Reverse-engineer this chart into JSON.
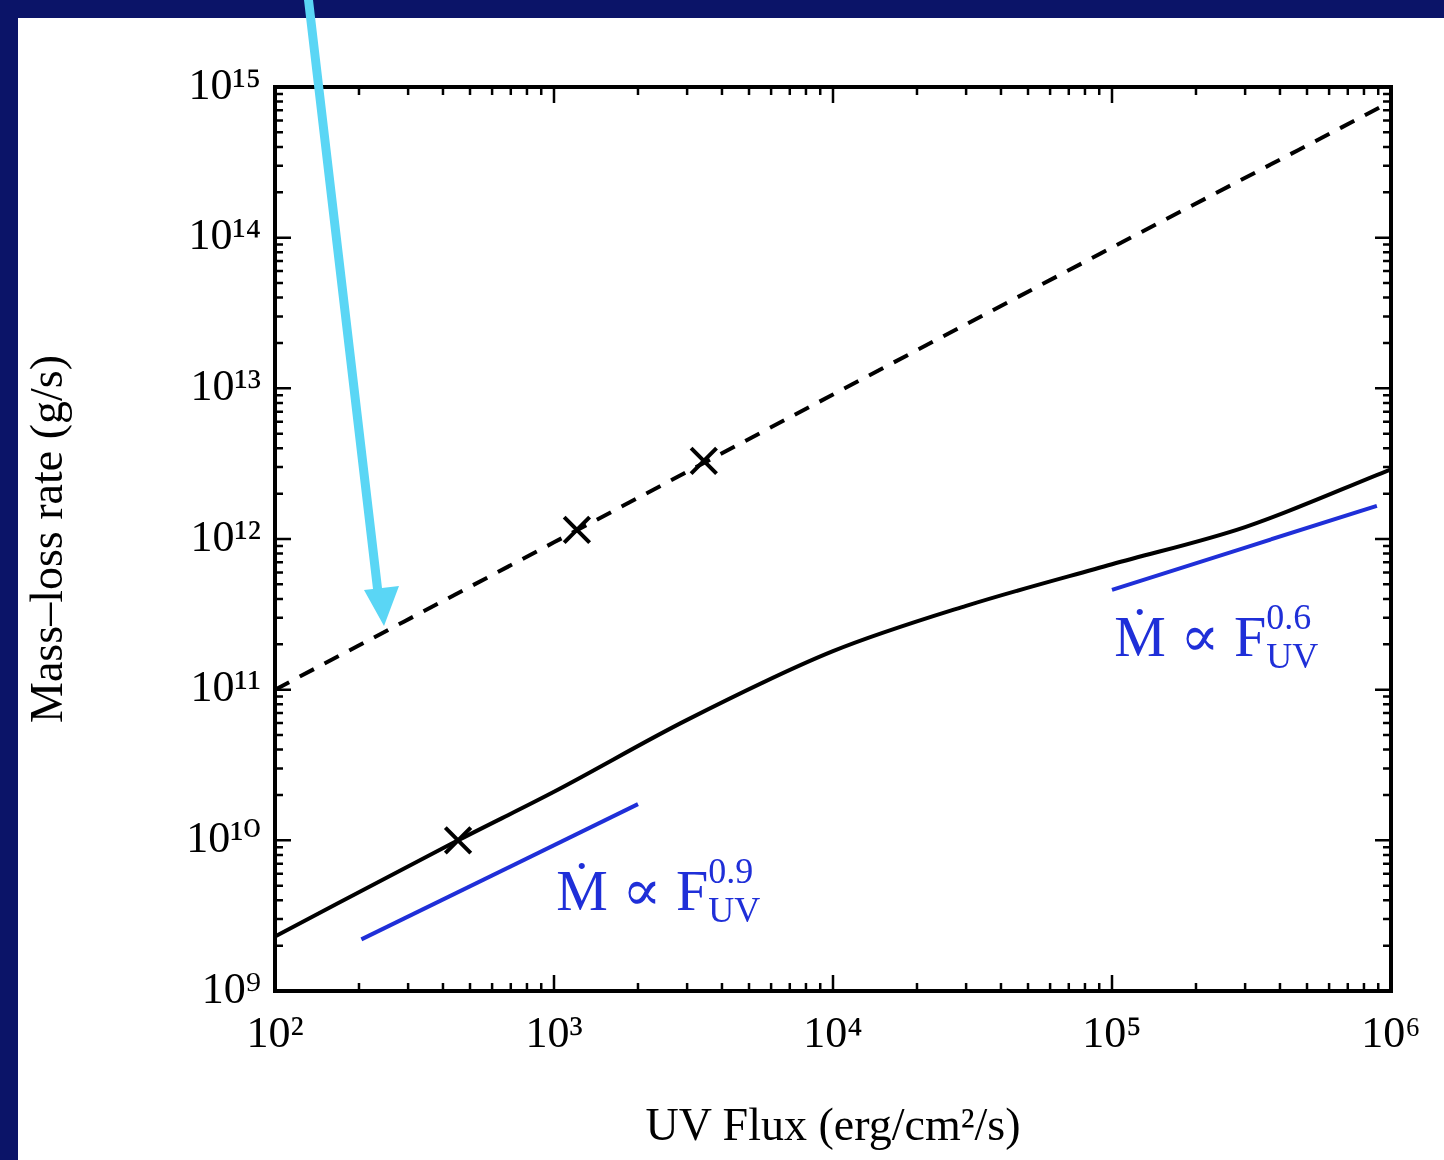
{
  "chart_data": {
    "type": "line",
    "xlabel": "UV Flux (erg/cm²/s)",
    "ylabel": "Mass–loss rate (g/s)",
    "log": "xy",
    "grid": false,
    "legend": false,
    "xlim": [
      100,
      1000000
    ],
    "ylim": [
      1000000000,
      1000000000000000
    ],
    "xticks": [
      {
        "value": 100,
        "label": "10²"
      },
      {
        "value": 200,
        "label": null
      },
      {
        "value": 300,
        "label": null
      },
      {
        "value": 400,
        "label": null
      },
      {
        "value": 500,
        "label": null
      },
      {
        "value": 600,
        "label": null
      },
      {
        "value": 700,
        "label": null
      },
      {
        "value": 800,
        "label": null
      },
      {
        "value": 900,
        "label": null
      },
      {
        "value": 1000,
        "label": "10³"
      },
      {
        "value": 2000,
        "label": null
      },
      {
        "value": 3000,
        "label": null
      },
      {
        "value": 4000,
        "label": null
      },
      {
        "value": 5000,
        "label": null
      },
      {
        "value": 6000,
        "label": null
      },
      {
        "value": 7000,
        "label": null
      },
      {
        "value": 8000,
        "label": null
      },
      {
        "value": 9000,
        "label": null
      },
      {
        "value": 10000,
        "label": "10⁴"
      },
      {
        "value": 20000,
        "label": null
      },
      {
        "value": 30000,
        "label": null
      },
      {
        "value": 40000,
        "label": null
      },
      {
        "value": 50000,
        "label": null
      },
      {
        "value": 60000,
        "label": null
      },
      {
        "value": 70000,
        "label": null
      },
      {
        "value": 80000,
        "label": null
      },
      {
        "value": 90000,
        "label": null
      },
      {
        "value": 100000,
        "label": "10⁵"
      },
      {
        "value": 200000,
        "label": null
      },
      {
        "value": 300000,
        "label": null
      },
      {
        "value": 400000,
        "label": null
      },
      {
        "value": 500000,
        "label": null
      },
      {
        "value": 600000,
        "label": null
      },
      {
        "value": 700000,
        "label": null
      },
      {
        "value": 800000,
        "label": null
      },
      {
        "value": 900000,
        "label": null
      },
      {
        "value": 1000000,
        "label": "10⁶"
      }
    ],
    "yticks": [
      {
        "value": 1000000000.0,
        "label": "10⁹"
      },
      {
        "value": 2000000000.0,
        "label": null
      },
      {
        "value": 3000000000.0,
        "label": null
      },
      {
        "value": 4000000000.0,
        "label": null
      },
      {
        "value": 5000000000.0,
        "label": null
      },
      {
        "value": 6000000000.0,
        "label": null
      },
      {
        "value": 7000000000.0,
        "label": null
      },
      {
        "value": 8000000000.0,
        "label": null
      },
      {
        "value": 9000000000.0,
        "label": null
      },
      {
        "value": 10000000000.0,
        "label": "10¹⁰"
      },
      {
        "value": 20000000000.0,
        "label": null
      },
      {
        "value": 30000000000.0,
        "label": null
      },
      {
        "value": 40000000000.0,
        "label": null
      },
      {
        "value": 50000000000.0,
        "label": null
      },
      {
        "value": 60000000000.0,
        "label": null
      },
      {
        "value": 70000000000.0,
        "label": null
      },
      {
        "value": 80000000000.0,
        "label": null
      },
      {
        "value": 90000000000.0,
        "label": null
      },
      {
        "value": 100000000000.0,
        "label": "10¹¹"
      },
      {
        "value": 200000000000.0,
        "label": null
      },
      {
        "value": 300000000000.0,
        "label": null
      },
      {
        "value": 400000000000.0,
        "label": null
      },
      {
        "value": 500000000000.0,
        "label": null
      },
      {
        "value": 600000000000.0,
        "label": null
      },
      {
        "value": 700000000000.0,
        "label": null
      },
      {
        "value": 800000000000.0,
        "label": null
      },
      {
        "value": 900000000000.0,
        "label": null
      },
      {
        "value": 1000000000000.0,
        "label": "10¹²"
      },
      {
        "value": 2000000000000.0,
        "label": null
      },
      {
        "value": 3000000000000.0,
        "label": null
      },
      {
        "value": 4000000000000.0,
        "label": null
      },
      {
        "value": 5000000000000.0,
        "label": null
      },
      {
        "value": 6000000000000.0,
        "label": null
      },
      {
        "value": 7000000000000.0,
        "label": null
      },
      {
        "value": 8000000000000.0,
        "label": null
      },
      {
        "value": 9000000000000.0,
        "label": null
      },
      {
        "value": 10000000000000.0,
        "label": "10¹³"
      },
      {
        "value": 20000000000000.0,
        "label": null
      },
      {
        "value": 30000000000000.0,
        "label": null
      },
      {
        "value": 40000000000000.0,
        "label": null
      },
      {
        "value": 50000000000000.0,
        "label": null
      },
      {
        "value": 60000000000000.0,
        "label": null
      },
      {
        "value": 70000000000000.0,
        "label": null
      },
      {
        "value": 80000000000000.0,
        "label": null
      },
      {
        "value": 90000000000000.0,
        "label": null
      },
      {
        "value": 100000000000000.0,
        "label": "10¹⁴"
      },
      {
        "value": 200000000000000.0,
        "label": null
      },
      {
        "value": 300000000000000.0,
        "label": null
      },
      {
        "value": 400000000000000.0,
        "label": null
      },
      {
        "value": 500000000000000.0,
        "label": null
      },
      {
        "value": 600000000000000.0,
        "label": null
      },
      {
        "value": 700000000000000.0,
        "label": null
      },
      {
        "value": 800000000000000.0,
        "label": null
      },
      {
        "value": 900000000000000.0,
        "label": null
      },
      {
        "value": 1000000000000000.0,
        "label": "10¹⁵"
      }
    ],
    "series": [
      {
        "type": "line",
        "color": "#000000",
        "line_style": "dashed",
        "marker": "none",
        "x": [
          100,
          1000,
          10000,
          100000,
          1000000
        ],
        "values": [
          100000000000.0,
          950000000000.0,
          9100000000000.0,
          86000000000000.0,
          800000000000000.0
        ]
      },
      {
        "type": "line",
        "color": "#000000",
        "line_style": "solid",
        "marker": "none",
        "x": [
          100,
          453,
          1000,
          3000,
          10000,
          30000,
          100000,
          300000,
          1000000
        ],
        "values": [
          2300000000.0,
          10000000000.0,
          21000000000.0,
          63000000000.0,
          180000000000.0,
          360000000000.0,
          680000000000.0,
          1200000000000.0,
          2900000000000.0
        ]
      },
      {
        "type": "scatter",
        "color": "#000000",
        "marker": "cross",
        "x": [
          453,
          1208,
          3443
        ],
        "values": [
          10000000000.0,
          1150000000000.0,
          3300000000000.0
        ]
      },
      {
        "type": "line",
        "color": "#1f2fd8",
        "line_style": "solid",
        "marker": "none",
        "x": [
          204,
          2000
        ],
        "values": [
          2200000000.0,
          17400000000.0
        ]
      },
      {
        "type": "line",
        "color": "#1f2fd8",
        "line_style": "solid",
        "marker": "none",
        "x": [
          100000,
          890000
        ],
        "values": [
          460000000000.0,
          1660000000000.0
        ]
      }
    ],
    "annotations": [
      "Ṁ ∝ F$_{UV}$$^{0.9}$",
      "Ṁ ∝ F$_{UV}$$^{0.6}$"
    ]
  }
}
